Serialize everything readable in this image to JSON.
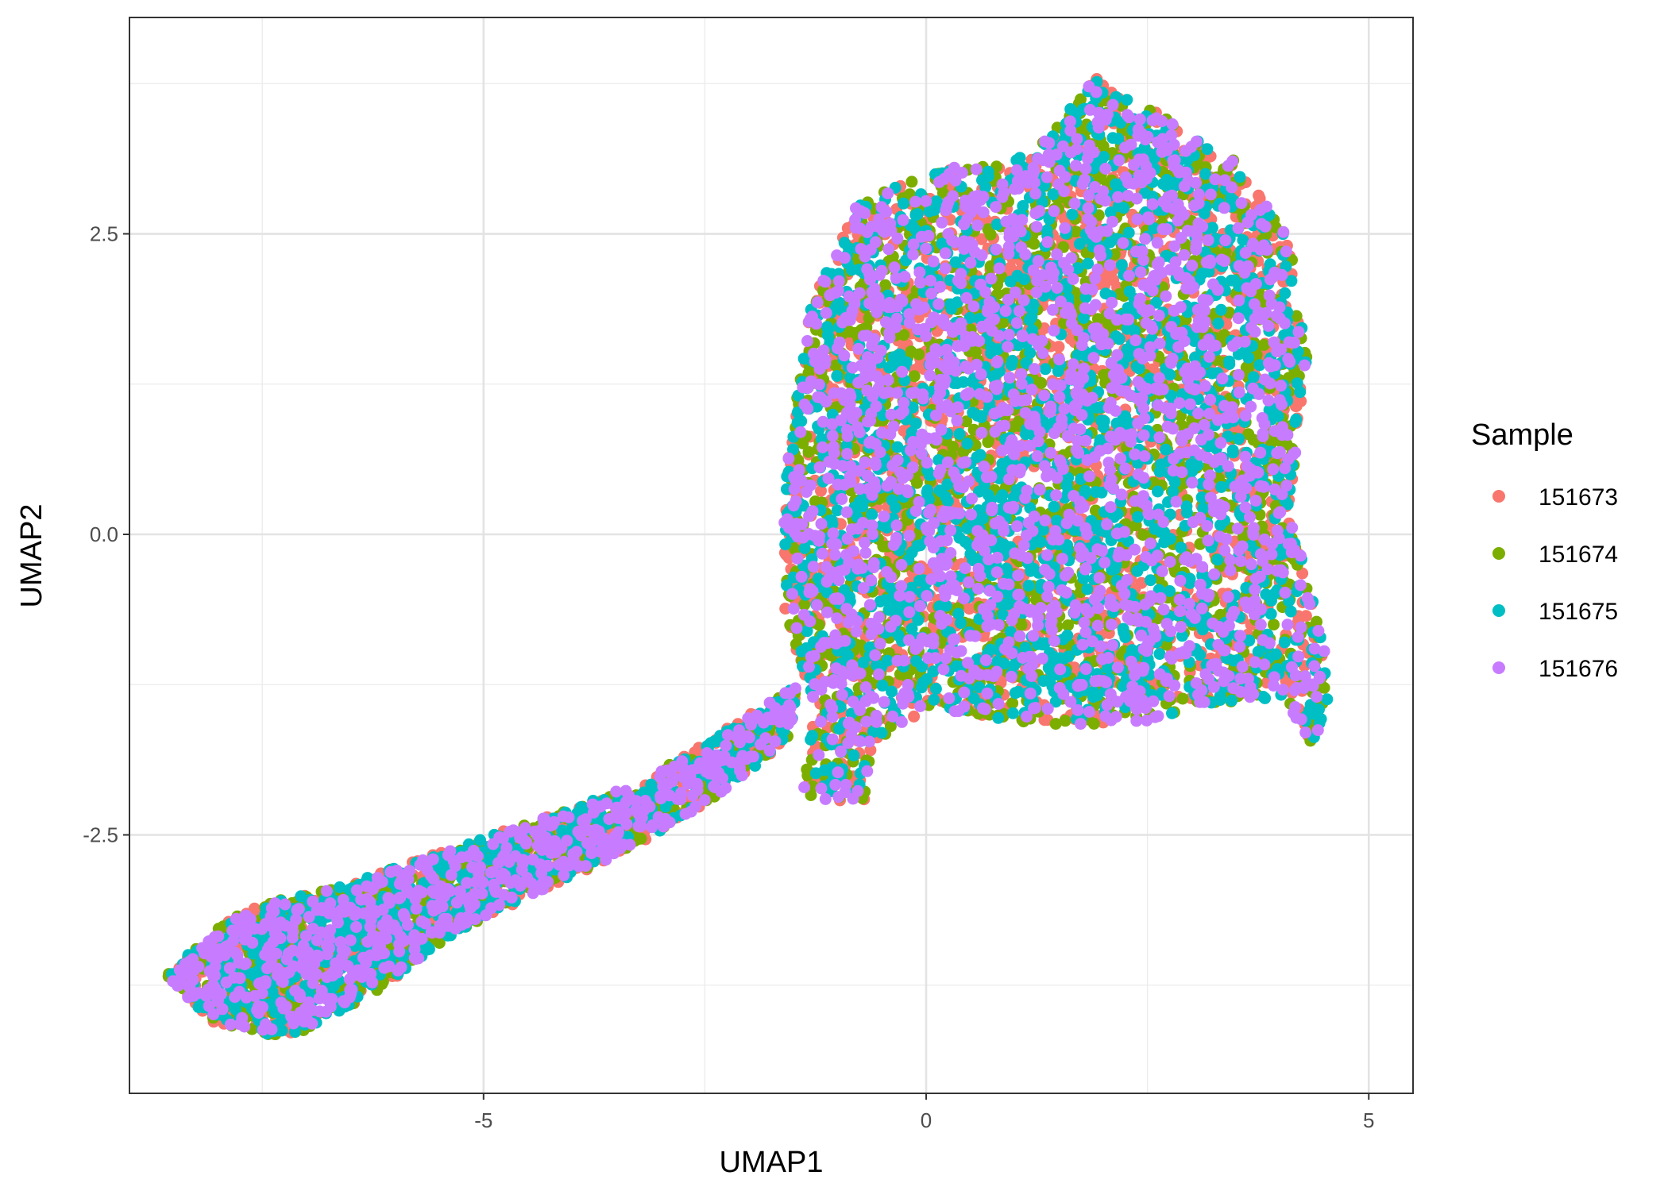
{
  "chart_data": {
    "type": "scatter",
    "title": "",
    "xlabel": "UMAP1",
    "ylabel": "UMAP2",
    "xlim": [
      -9,
      5.5
    ],
    "ylim": [
      -4.65,
      4.3
    ],
    "x_ticks": [
      -5,
      0,
      5
    ],
    "x_tick_labels": [
      "-5",
      "0",
      "5"
    ],
    "y_ticks": [
      -2.5,
      0,
      2.5
    ],
    "y_tick_labels": [
      "-2.5",
      "0.0",
      "2.5"
    ],
    "grid": true,
    "legend": {
      "title": "Sample",
      "position": "right"
    },
    "series": [
      {
        "name": "151673",
        "color": "#F8766D"
      },
      {
        "name": "151674",
        "color": "#7CAE00"
      },
      {
        "name": "151675",
        "color": "#00BFC4"
      },
      {
        "name": "151676",
        "color": "#C77CFF"
      }
    ],
    "regions": [
      {
        "shape": "polygon",
        "points": [
          [
            -0.8,
            2.75
          ],
          [
            0.2,
            3.05
          ],
          [
            1.2,
            3.15
          ],
          [
            1.9,
            3.8
          ],
          [
            2.4,
            3.6
          ],
          [
            3.5,
            3.1
          ],
          [
            4.1,
            2.45
          ],
          [
            4.3,
            1.5
          ],
          [
            4.1,
            0.2
          ],
          [
            4.45,
            -0.8
          ],
          [
            4.6,
            -1.25
          ],
          [
            4.35,
            -1.8
          ],
          [
            4.05,
            -1.35
          ],
          [
            3.3,
            -1.4
          ],
          [
            2.5,
            -1.55
          ],
          [
            1.3,
            -1.6
          ],
          [
            0.1,
            -1.45
          ],
          [
            -0.6,
            -1.75
          ],
          [
            -0.7,
            -2.25
          ],
          [
            -1.4,
            -2.2
          ],
          [
            -1.3,
            -1.4
          ],
          [
            -1.6,
            -0.6
          ],
          [
            -1.6,
            0.5
          ],
          [
            -1.3,
            1.9
          ]
        ],
        "weight": 0.72
      },
      {
        "shape": "polygon",
        "points": [
          [
            -8.6,
            -3.65
          ],
          [
            -7.7,
            -3.1
          ],
          [
            -6.7,
            -2.95
          ],
          [
            -5.9,
            -2.75
          ],
          [
            -5.1,
            -2.55
          ],
          [
            -4.1,
            -2.3
          ],
          [
            -3.2,
            -2.05
          ],
          [
            -2.1,
            -1.55
          ],
          [
            -1.45,
            -1.25
          ],
          [
            -1.55,
            -1.7
          ],
          [
            -2.2,
            -2.1
          ],
          [
            -3.3,
            -2.6
          ],
          [
            -4.3,
            -2.95
          ],
          [
            -5.3,
            -3.3
          ],
          [
            -6.2,
            -3.8
          ],
          [
            -7.2,
            -4.2
          ],
          [
            -8.1,
            -4.05
          ]
        ],
        "weight": 0.28
      }
    ],
    "total_points": 9000
  }
}
